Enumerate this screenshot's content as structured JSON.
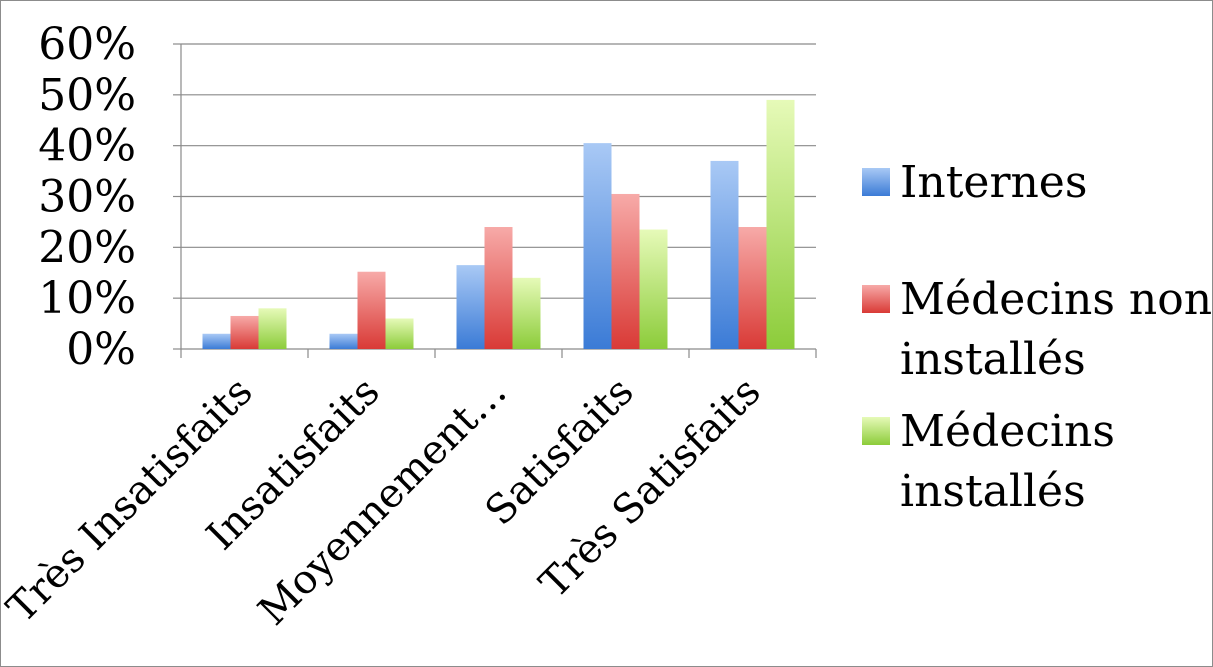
{
  "chart_data": {
    "type": "bar",
    "title": "",
    "xlabel": "",
    "ylabel": "",
    "categories": [
      "Très Insatisfaits",
      "Insatisfaits",
      "Moyennement…",
      "Satisfaits",
      "Très Satisfaits"
    ],
    "series": [
      {
        "name": "Internes",
        "values": [
          3,
          3,
          16.5,
          40.5,
          37
        ]
      },
      {
        "name": "Médecins non installés",
        "values": [
          6.5,
          15.2,
          24,
          30.5,
          24
        ]
      },
      {
        "name": "Médecins installés",
        "values": [
          8,
          6,
          14,
          23.5,
          49
        ]
      }
    ],
    "ylim": [
      0,
      60
    ],
    "yticks": [
      "0%",
      "10%",
      "20%",
      "30%",
      "40%",
      "50%",
      "60%"
    ],
    "grid": true,
    "legend": {
      "position": "right",
      "entries": [
        {
          "lines": [
            "Internes"
          ]
        },
        {
          "lines": [
            "Médecins non",
            "installés"
          ]
        },
        {
          "lines": [
            "Médecins",
            "installés"
          ]
        }
      ]
    },
    "colors": {
      "Internes": [
        "#a9c9f5",
        "#3b7bd6"
      ],
      "Médecins non installés": [
        "#f7aaa8",
        "#d93a36"
      ],
      "Médecins installés": [
        "#e6fab8",
        "#8ccc3a"
      ]
    }
  }
}
